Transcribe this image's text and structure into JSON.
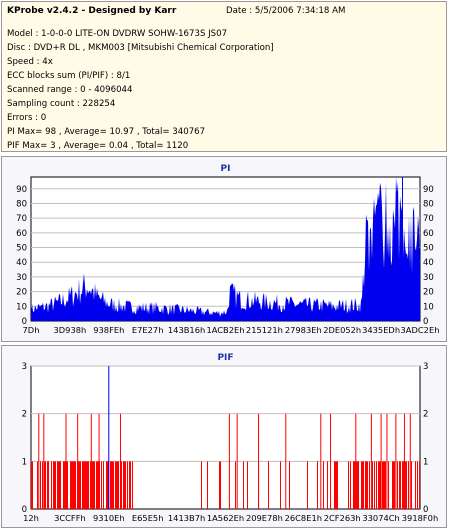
{
  "header": {
    "title": "KProbe v2.4.2 - Designed by Karr",
    "date": "Date : 5/5/2006 7:34:18 AM"
  },
  "info_lines": [
    "Model : 1-0-0-0 LITE-ON DVDRW SOHW-1673S JS07",
    "Disc : DVD+R DL , MKM003 [Mitsubishi Chemical Corporation]",
    "Speed : 4x",
    "ECC blocks sum (PI/PIF) : 8/1",
    "Scanned range : 0 - 4096044",
    "Sampling count : 228254",
    "Errors : 0",
    "PI Max= 98 , Average= 10.97 , Total= 340767",
    "PIF Max= 3 , Average= 0.04 , Total= 1120"
  ],
  "colors": {
    "pi_fill": "#0000ee",
    "pif_bar": "#ff0000",
    "grid": "#c0c0c0",
    "title": "#2233aa"
  },
  "chart_data": [
    {
      "type": "area",
      "title": "PI",
      "ylim": [
        0,
        98
      ],
      "yticks": [
        0,
        10,
        20,
        30,
        40,
        50,
        60,
        70,
        80,
        90
      ],
      "x_tick_labels": [
        "7Dh",
        "3D938h",
        "938FEh",
        "E7E27h",
        "143B16h",
        "1ACB2Eh",
        "215121h",
        "27983Eh",
        "2DE052h",
        "3435EDh",
        "3ADC2Eh"
      ],
      "x_range": [
        0,
        1
      ],
      "grid": true,
      "max_line_at": 0.955,
      "profile": [
        [
          0.0,
          9
        ],
        [
          0.04,
          11
        ],
        [
          0.08,
          15
        ],
        [
          0.11,
          20
        ],
        [
          0.13,
          24
        ],
        [
          0.145,
          27
        ],
        [
          0.155,
          24
        ],
        [
          0.17,
          18
        ],
        [
          0.2,
          13
        ],
        [
          0.24,
          11
        ],
        [
          0.28,
          10
        ],
        [
          0.32,
          10
        ],
        [
          0.36,
          9
        ],
        [
          0.4,
          8
        ],
        [
          0.44,
          7
        ],
        [
          0.48,
          6
        ],
        [
          0.505,
          7
        ],
        [
          0.51,
          21
        ],
        [
          0.525,
          19
        ],
        [
          0.54,
          16
        ],
        [
          0.58,
          15
        ],
        [
          0.62,
          14
        ],
        [
          0.66,
          13
        ],
        [
          0.7,
          12
        ],
        [
          0.74,
          12
        ],
        [
          0.78,
          11
        ],
        [
          0.82,
          12
        ],
        [
          0.85,
          12
        ],
        [
          0.86,
          60
        ],
        [
          0.88,
          66
        ],
        [
          0.9,
          70
        ],
        [
          0.92,
          74
        ],
        [
          0.94,
          80
        ],
        [
          0.955,
          84
        ],
        [
          0.97,
          78
        ],
        [
          0.985,
          60
        ],
        [
          1.0,
          45
        ]
      ]
    },
    {
      "type": "bar",
      "title": "PIF",
      "ylim": [
        0,
        3
      ],
      "yticks": [
        0,
        1,
        2,
        3
      ],
      "x_tick_labels": [
        "12h",
        "3CCFFh",
        "9310Eh",
        "E65E5h",
        "1413B7h",
        "1A562Eh",
        "209E78h",
        "26C8E1h",
        "2CF263h",
        "33074Ch",
        "3918F0h"
      ],
      "x_range": [
        0,
        1
      ],
      "grid": true,
      "max_line_at": 0.2,
      "value2_positions": [
        0.02,
        0.033,
        0.09,
        0.12,
        0.155,
        0.175,
        0.23,
        0.51,
        0.53,
        0.585,
        0.655,
        0.745,
        0.77,
        0.835,
        0.875,
        0.9,
        0.915,
        0.938,
        0.96,
        0.975
      ],
      "value1_regions": [
        [
          0.0,
          0.26,
          0.8
        ],
        [
          0.26,
          0.28,
          0.3
        ],
        [
          0.42,
          0.5,
          0.1
        ],
        [
          0.5,
          0.82,
          0.12
        ],
        [
          0.82,
          1.0,
          0.6
        ]
      ]
    }
  ]
}
